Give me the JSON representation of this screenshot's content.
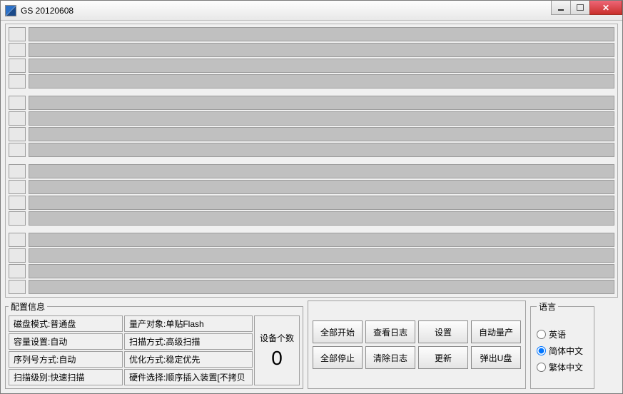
{
  "window": {
    "title": "GS  20120608"
  },
  "slots": {
    "groups": [
      4,
      4,
      4,
      4
    ],
    "idx_bg": "#e8e8e8",
    "bar_bg": "#c0c0c0",
    "border": "#9c9c9c"
  },
  "config": {
    "legend": "配置信息",
    "col1": [
      "磁盘模式:普通盘",
      "容量设置:自动",
      "序列号方式:自动",
      "扫描级别:快速扫描"
    ],
    "col2": [
      "量产对象:单贴Flash",
      "扫描方式:高级扫描",
      "优化方式:稳定优先",
      "硬件选择:顺序插入装置[不拷贝"
    ]
  },
  "device": {
    "label": "设备个数",
    "count": "0"
  },
  "actions": {
    "r0": [
      "全部开始",
      "查看日志",
      "设置",
      "自动量产"
    ],
    "r1": [
      "全部停止",
      "清除日志",
      "更新",
      "弹出U盘"
    ]
  },
  "language": {
    "legend": "语言",
    "options": [
      "英语",
      "简体中文",
      "繁体中文"
    ],
    "selected": 1
  }
}
